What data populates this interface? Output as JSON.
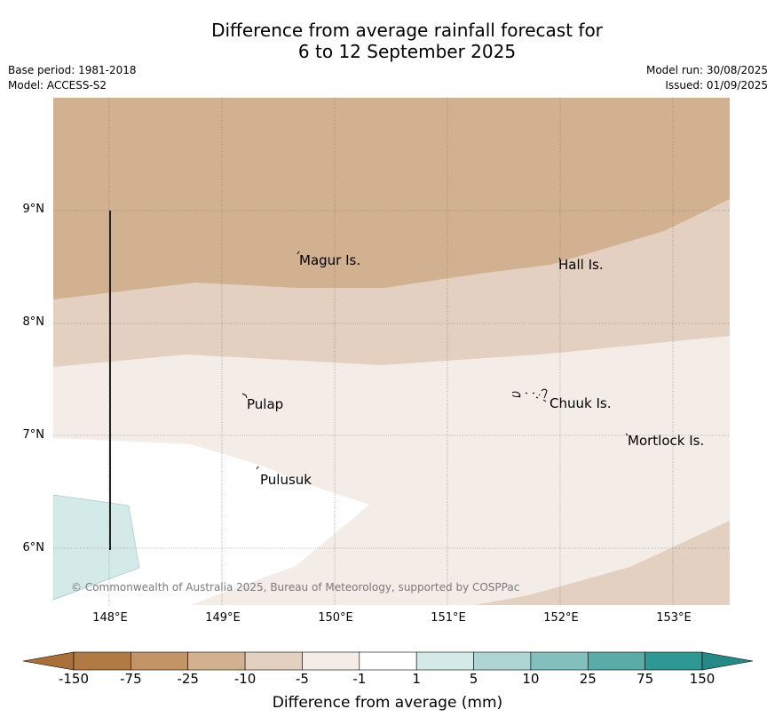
{
  "title": {
    "line1": "Difference from average rainfall forecast for",
    "line2": "6 to 12 September 2025"
  },
  "meta": {
    "base_period": "Base period: 1981-2018",
    "model": "Model: ACCESS-S2",
    "model_run": "Model run: 30/08/2025",
    "issued": "Issued: 01/09/2025"
  },
  "axes": {
    "x_ticks": [
      "148°E",
      "149°E",
      "150°E",
      "151°E",
      "152°E",
      "153°E"
    ],
    "y_ticks": [
      "9°N",
      "8°N",
      "7°N",
      "6°N"
    ]
  },
  "places": [
    {
      "name": "Magur Is."
    },
    {
      "name": "Hall Is."
    },
    {
      "name": "Pulap"
    },
    {
      "name": "Chuuk Is."
    },
    {
      "name": "Mortlock Is."
    },
    {
      "name": "Pulusuk"
    }
  ],
  "copyright": "© Commonwealth of Australia 2025, Bureau of Meteorology, supported by COSPPac",
  "colorbar": {
    "title": "Difference from average (mm)",
    "ticks": [
      "-150",
      "-75",
      "-25",
      "-10",
      "-5",
      "-1",
      "1",
      "5",
      "10",
      "25",
      "75",
      "150"
    ],
    "colors": [
      "#a9703a",
      "#b17a45",
      "#c29466",
      "#d1b190",
      "#e3d0c0",
      "#f4ece7",
      "#ffffff",
      "#d4eae8",
      "#aed5d3",
      "#83c0bd",
      "#59aca8",
      "#2e9895",
      "#268985"
    ]
  },
  "legend_colors": {
    "band_-25_-10": "#d1b190",
    "band_-10_-5": "#e3d0c0",
    "band_-5_-1": "#f4ece7",
    "band_-1_1": "#ffffff",
    "band_1_5": "#d4eae8"
  }
}
